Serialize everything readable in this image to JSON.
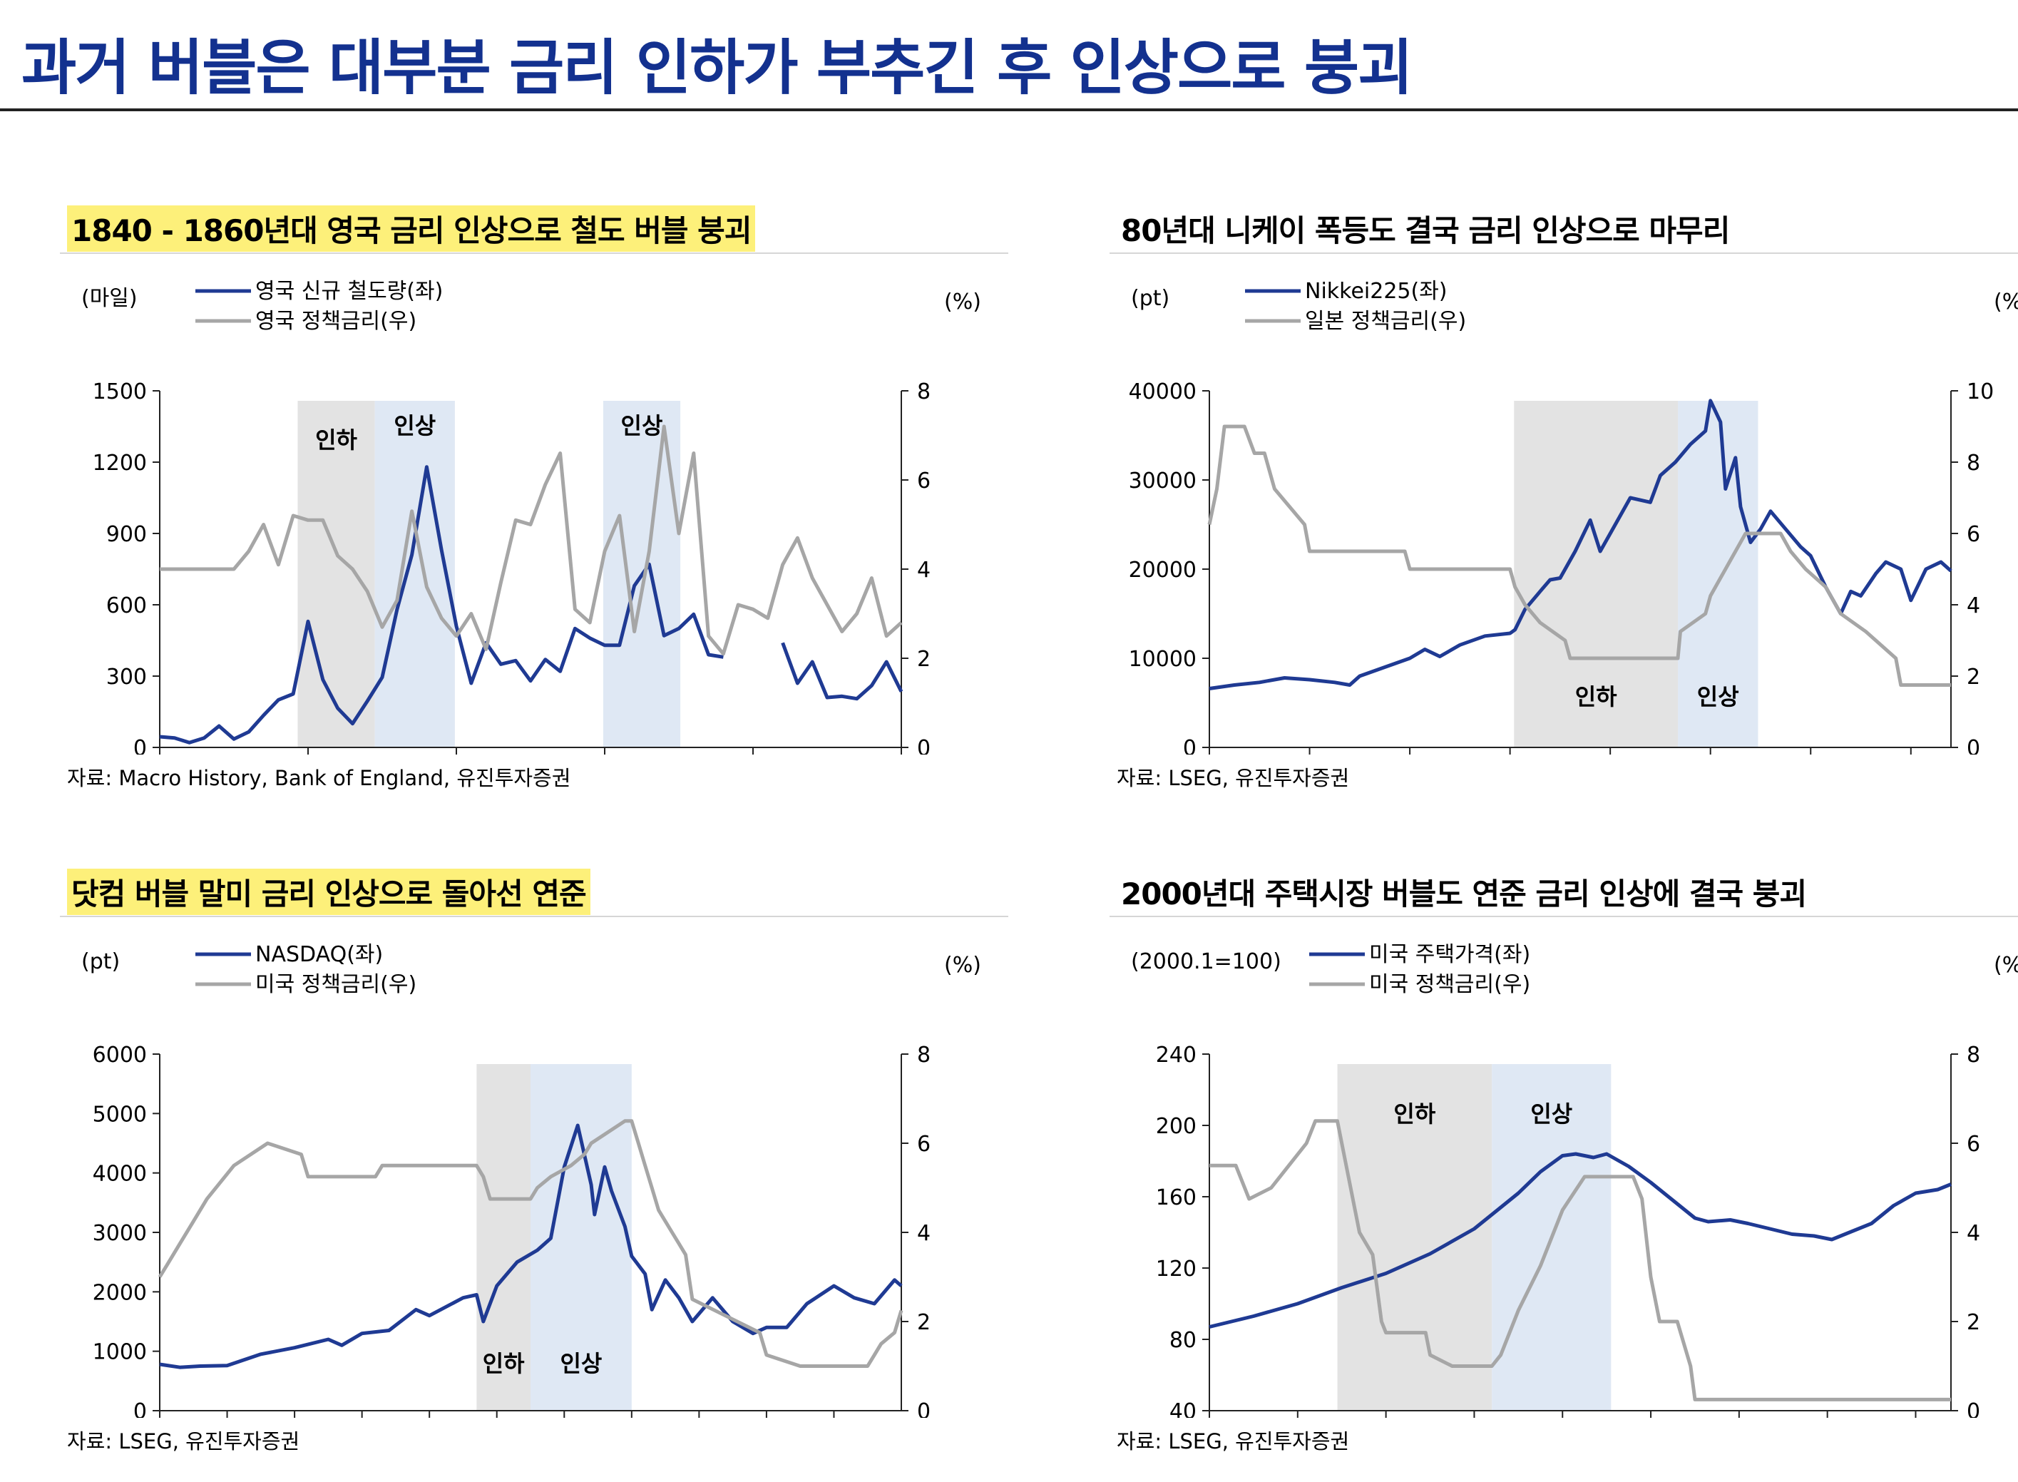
{
  "header": {
    "title": "과거 버블은 대부분 금리 인하가 부추긴 후 인상으로 붕괴"
  },
  "colors": {
    "title": "#13318f",
    "primary_series": "#1f3a93",
    "rate_series": "#a6a6a6",
    "cut_band": "#e3e3e3",
    "hike_band": "#dfe8f4",
    "highlight": "#fdf07a"
  },
  "chart_data": [
    {
      "id": "uk-railway",
      "type": "line",
      "title": "1840 - 1860년대 영국 금리 인상으로 철도 버블 붕괴",
      "title_highlight": true,
      "left_unit": "(마일)",
      "right_unit": "(%)",
      "legend": [
        "영국 신규 철도량(좌)",
        "영국 정책금리(우)"
      ],
      "legend_position": "top-left",
      "x_ticks": [
        "1830",
        "1840",
        "1850",
        "1860",
        "1870",
        "1880"
      ],
      "xlim": [
        1830,
        1880
      ],
      "y_left": {
        "lim": [
          0,
          1500
        ],
        "ticks": [
          "0",
          "300",
          "600",
          "900",
          "1200",
          "1500"
        ]
      },
      "y_right": {
        "lim": [
          0,
          8
        ],
        "ticks": [
          "0",
          "2",
          "4",
          "6",
          "8"
        ]
      },
      "bands": [
        {
          "label": "인하",
          "kind": "cut",
          "from": 1839.3,
          "to": 1844.5
        },
        {
          "label": "인상",
          "kind": "hike",
          "from": 1844.5,
          "to": 1849.9
        },
        {
          "label": "인상",
          "kind": "hike",
          "from": 1859.9,
          "to": 1865.1
        }
      ],
      "series": [
        {
          "name": "영국 신규 철도량(좌)",
          "axis": "left",
          "x": [
            1830,
            1831,
            1832,
            1833,
            1834,
            1835,
            1836,
            1837,
            1838,
            1839,
            1840,
            1841,
            1842,
            1843,
            1844,
            1845,
            1846,
            1847,
            1848,
            1849,
            1850,
            1851,
            1852,
            1853,
            1854,
            1855,
            1856,
            1857,
            1858,
            1859,
            1860,
            1861,
            1862,
            1863,
            1864,
            1865,
            1866,
            1867,
            1868,
            null,
            1872,
            1873,
            1874,
            1875,
            1876,
            1877,
            1878,
            1879,
            1880
          ],
          "values": [
            45,
            40,
            20,
            40,
            90,
            35,
            65,
            135,
            200,
            225,
            530,
            285,
            165,
            100,
            195,
            295,
            580,
            810,
            1180,
            830,
            510,
            270,
            440,
            350,
            365,
            280,
            370,
            320,
            500,
            460,
            430,
            430,
            680,
            770,
            470,
            500,
            560,
            390,
            380,
            null,
            440,
            270,
            360,
            210,
            215,
            205,
            260,
            360,
            235
          ]
        },
        {
          "name": "영국 정책금리(우)",
          "axis": "right",
          "x": [
            1830,
            1831,
            1832,
            1833,
            1834,
            1835,
            1836,
            1837,
            1838,
            1839,
            1840,
            1841,
            1842,
            1843,
            1844,
            1845,
            1846,
            1847,
            1848,
            1849,
            1850,
            1851,
            1852,
            1853,
            1854,
            1855,
            1856,
            1857,
            1858,
            1859,
            1860,
            1861,
            1862,
            1863,
            1864,
            1865,
            1866,
            1867,
            1868,
            1869,
            1870,
            1871,
            1872,
            1873,
            1874,
            1875,
            1876,
            1877,
            1878,
            1879,
            1880
          ],
          "values": [
            4,
            4,
            4,
            4,
            4,
            4,
            4.4,
            5,
            4.1,
            5.2,
            5.1,
            5.1,
            4.3,
            4,
            3.5,
            2.7,
            3.3,
            5.3,
            3.6,
            2.9,
            2.5,
            3,
            2.2,
            3.7,
            5.1,
            5,
            5.9,
            6.6,
            3.1,
            2.8,
            4.4,
            5.2,
            2.6,
            4.4,
            7.2,
            4.8,
            6.6,
            2.5,
            2.1,
            3.2,
            3.1,
            2.9,
            4.1,
            4.7,
            3.8,
            3.2,
            2.6,
            3,
            3.8,
            2.5,
            2.8
          ]
        }
      ],
      "source": "자료: Macro History, Bank of England, 유진투자증권"
    },
    {
      "id": "nikkei",
      "type": "line",
      "title": "80년대 니케이 폭등도 결국 금리 인상으로 마무리",
      "title_highlight": false,
      "left_unit": "(pt)",
      "right_unit": "(%)",
      "legend": [
        "Nikkei225(좌)",
        "일본 정책금리(우)"
      ],
      "legend_position": "top-left",
      "x_ticks": [
        "80",
        "82",
        "84",
        "86",
        "88",
        "90",
        "92",
        "94"
      ],
      "xlim": [
        80,
        94.8
      ],
      "y_left": {
        "lim": [
          0,
          40000
        ],
        "ticks": [
          "0",
          "10000",
          "20000",
          "30000",
          "40000"
        ]
      },
      "y_right": {
        "lim": [
          0,
          10
        ],
        "ticks": [
          "0",
          "2",
          "4",
          "6",
          "8",
          "10"
        ]
      },
      "bands": [
        {
          "label": "인하",
          "kind": "cut",
          "from": 86.08,
          "to": 89.35
        },
        {
          "label": "인상",
          "kind": "hike",
          "from": 89.35,
          "to": 90.95
        }
      ],
      "series": [
        {
          "name": "Nikkei225(좌)",
          "axis": "left",
          "x": [
            80,
            80.5,
            81,
            81.5,
            82,
            82.5,
            82.8,
            83,
            83.5,
            84,
            84.3,
            84.6,
            85,
            85.5,
            86,
            86.1,
            86.3,
            86.6,
            86.8,
            87,
            87.3,
            87.6,
            87.8,
            88,
            88.4,
            88.8,
            89,
            89.3,
            89.6,
            89.9,
            90,
            90.2,
            90.3,
            90.5,
            90.6,
            90.8,
            91,
            91.2,
            91.5,
            91.8,
            92,
            92.3,
            92.6,
            92.8,
            93,
            93.3,
            93.5,
            93.8,
            94,
            94.3,
            94.6,
            94.8
          ],
          "values": [
            6600,
            7000,
            7300,
            7800,
            7600,
            7300,
            7000,
            8000,
            9000,
            10000,
            11000,
            10200,
            11500,
            12500,
            12800,
            13200,
            15500,
            17500,
            18800,
            19000,
            22000,
            25500,
            22000,
            24000,
            28000,
            27500,
            30500,
            32000,
            34000,
            35500,
            38900,
            36500,
            29000,
            32500,
            27000,
            23000,
            24500,
            26500,
            24500,
            22500,
            21500,
            18000,
            15000,
            17500,
            17000,
            19500,
            20800,
            20000,
            16500,
            20000,
            20800,
            19800
          ]
        },
        {
          "name": "일본 정책금리(우)",
          "axis": "right",
          "x": [
            80,
            80.15,
            80.3,
            80.7,
            80.9,
            81.1,
            81.3,
            81.9,
            82,
            83.9,
            84,
            86,
            86.1,
            86.3,
            86.6,
            87.1,
            87.2,
            89.35,
            89.4,
            89.9,
            90.0,
            90.4,
            90.7,
            91.4,
            91.6,
            91.9,
            92.3,
            92.6,
            93.1,
            93.7,
            93.8,
            94.8
          ],
          "values": [
            6.25,
            7.25,
            9,
            9,
            8.25,
            8.25,
            7.25,
            6.25,
            5.5,
            5.5,
            5,
            5,
            4.5,
            4,
            3.5,
            3,
            2.5,
            2.5,
            3.25,
            3.75,
            4.25,
            5.25,
            6,
            6,
            5.5,
            5,
            4.5,
            3.75,
            3.25,
            2.5,
            1.75,
            1.75
          ]
        }
      ],
      "source": "자료: LSEG, 유진투자증권"
    },
    {
      "id": "nasdaq",
      "type": "line",
      "title": "닷컴 버블 말미 금리 인상으로 돌아선 연준",
      "title_highlight": true,
      "left_unit": "(pt)",
      "right_unit": "(%)",
      "legend": [
        "NASDAQ(좌)",
        "미국 정책금리(우)"
      ],
      "legend_position": "top-left",
      "x_ticks": [
        "94",
        "95",
        "96",
        "97",
        "98",
        "99",
        "00",
        "01",
        "02",
        "03",
        "04"
      ],
      "xlim": [
        94,
        105
      ],
      "y_left": {
        "lim": [
          0,
          6000
        ],
        "ticks": [
          "0",
          "1000",
          "2000",
          "3000",
          "4000",
          "5000",
          "6000"
        ]
      },
      "y_right": {
        "lim": [
          0,
          8
        ],
        "ticks": [
          "0",
          "2",
          "4",
          "6",
          "8"
        ]
      },
      "bands": [
        {
          "label": "인하",
          "kind": "cut",
          "from": 98.7,
          "to": 99.5
        },
        {
          "label": "인상",
          "kind": "hike",
          "from": 99.5,
          "to": 101.0
        }
      ],
      "series": [
        {
          "name": "NASDAQ(좌)",
          "axis": "left",
          "x": [
            94,
            94.3,
            94.6,
            95,
            95.5,
            96,
            96.5,
            96.7,
            97,
            97.4,
            97.8,
            98,
            98.5,
            98.7,
            98.8,
            99,
            99.3,
            99.6,
            99.8,
            100,
            100.2,
            100.4,
            100.45,
            100.6,
            100.7,
            100.9,
            101.0,
            101.2,
            101.3,
            101.5,
            101.7,
            101.9,
            102.2,
            102.5,
            102.8,
            103,
            103.3,
            103.6,
            104,
            104.3,
            104.6,
            104.9,
            105
          ],
          "values": [
            780,
            730,
            750,
            760,
            950,
            1060,
            1200,
            1100,
            1300,
            1350,
            1700,
            1600,
            1900,
            1950,
            1500,
            2100,
            2500,
            2700,
            2900,
            4100,
            4800,
            3800,
            3300,
            4100,
            3700,
            3100,
            2600,
            2300,
            1700,
            2200,
            1900,
            1500,
            1900,
            1500,
            1300,
            1400,
            1400,
            1800,
            2100,
            1900,
            1800,
            2200,
            2100
          ]
        },
        {
          "name": "미국 정책금리(우)",
          "axis": "right",
          "x": [
            94,
            94.1,
            94.3,
            94.5,
            94.7,
            95.1,
            95.6,
            96.1,
            96.2,
            97.2,
            97.3,
            98.7,
            98.8,
            98.9,
            99.5,
            99.6,
            99.8,
            100.1,
            100.3,
            100.4,
            100.9,
            101.0,
            101.1,
            101.2,
            101.3,
            101.4,
            101.6,
            101.7,
            101.8,
            101.9,
            102.9,
            103.0,
            103.5,
            104.5,
            104.6,
            104.7,
            104.9,
            105
          ],
          "values": [
            3,
            3.25,
            3.75,
            4.25,
            4.75,
            5.5,
            6,
            5.75,
            5.25,
            5.25,
            5.5,
            5.5,
            5.25,
            4.75,
            4.75,
            5,
            5.25,
            5.5,
            5.75,
            6,
            6.5,
            6.5,
            6,
            5.5,
            5,
            4.5,
            4,
            3.75,
            3.5,
            2.5,
            1.75,
            1.25,
            1,
            1,
            1.25,
            1.5,
            1.75,
            2.25
          ]
        }
      ],
      "source": "자료: LSEG, 유진투자증권"
    },
    {
      "id": "us-housing",
      "type": "line",
      "title": "2000년대 주택시장 버블도 연준 금리 인상에 결국 붕괴",
      "title_highlight": false,
      "left_unit": "(2000.1=100)",
      "right_unit": "(%)",
      "legend": [
        "미국 주택가격(좌)",
        "미국 정책금리(우)"
      ],
      "legend_position": "top-left",
      "x_ticks": [
        "98",
        "00",
        "02",
        "04",
        "06",
        "08",
        "10",
        "12",
        "14"
      ],
      "xlim": [
        98,
        114.8
      ],
      "y_left": {
        "lim": [
          40,
          240
        ],
        "ticks": [
          "40",
          "80",
          "120",
          "160",
          "200",
          "240"
        ]
      },
      "y_right": {
        "lim": [
          0,
          8
        ],
        "ticks": [
          "0",
          "2",
          "4",
          "6",
          "8"
        ]
      },
      "bands": [
        {
          "label": "인하",
          "kind": "cut",
          "from": 100.9,
          "to": 104.4
        },
        {
          "label": "인상",
          "kind": "hike",
          "from": 104.4,
          "to": 107.1
        }
      ],
      "series": [
        {
          "name": "미국 주택가격(좌)",
          "axis": "left",
          "x": [
            98,
            99,
            100,
            101,
            102,
            103,
            104,
            104.5,
            105,
            105.5,
            106,
            106.3,
            106.7,
            107,
            107.5,
            108,
            108.5,
            109,
            109.3,
            109.8,
            110.2,
            110.7,
            111.2,
            111.7,
            112.1,
            112.5,
            113,
            113.5,
            114,
            114.5,
            114.8
          ],
          "values": [
            87,
            93,
            100,
            109,
            117,
            128,
            142,
            152,
            162,
            174,
            183,
            184,
            182,
            184,
            177,
            168,
            158,
            148,
            146,
            147,
            145,
            142,
            139,
            138,
            136,
            140,
            145,
            155,
            162,
            164,
            167
          ]
        },
        {
          "name": "미국 정책금리(우)",
          "axis": "right",
          "x": [
            98,
            98.6,
            98.9,
            99.4,
            99.8,
            100.2,
            100.4,
            100.9,
            101.1,
            101.4,
            101.7,
            101.9,
            102.0,
            102.9,
            103.0,
            103.5,
            104.4,
            104.6,
            105,
            105.5,
            106,
            106.5,
            107.6,
            107.8,
            108.0,
            108.2,
            108.6,
            108.9,
            109.0,
            114.8
          ],
          "values": [
            5.5,
            5.5,
            4.75,
            5,
            5.5,
            6,
            6.5,
            6.5,
            5.5,
            4,
            3.5,
            2,
            1.75,
            1.75,
            1.25,
            1,
            1,
            1.25,
            2.25,
            3.25,
            4.5,
            5.25,
            5.25,
            4.75,
            3,
            2,
            2,
            1,
            0.25,
            0.25
          ]
        }
      ],
      "source": "자료: LSEG, 유진투자증권"
    }
  ]
}
